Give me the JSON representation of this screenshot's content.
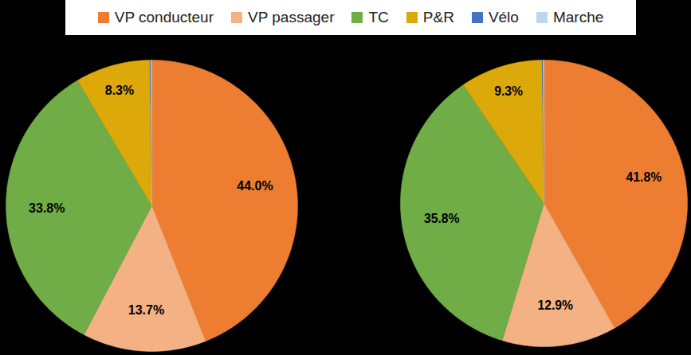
{
  "chart_data": [
    {
      "type": "pie",
      "legend": "top",
      "data_labels": true,
      "categories": [
        "VP conducteur",
        "VP passager",
        "TC",
        "P&R",
        "Vélo",
        "Marche"
      ],
      "values": [
        44.0,
        13.7,
        33.8,
        8.3,
        0.1,
        0.1
      ],
      "value_labels": [
        "44.0%",
        "13.7%",
        "33.8%",
        "8.3%",
        null,
        null
      ],
      "colors": [
        "#ED7D31",
        "#F4B183",
        "#70AD47",
        "#DDA80A",
        "#4472C4",
        "#BDD7EE"
      ]
    },
    {
      "type": "pie",
      "data_labels": true,
      "categories": [
        "VP conducteur",
        "VP passager",
        "TC",
        "P&R",
        "Vélo",
        "Marche"
      ],
      "values": [
        41.8,
        12.9,
        35.8,
        9.3,
        0.1,
        0.1
      ],
      "value_labels": [
        "41.8%",
        "12.9%",
        "35.8%",
        "9.3%",
        null,
        null
      ],
      "colors": [
        "#ED7D31",
        "#F4B183",
        "#70AD47",
        "#DDA80A",
        "#4472C4",
        "#BDD7EE"
      ]
    }
  ]
}
